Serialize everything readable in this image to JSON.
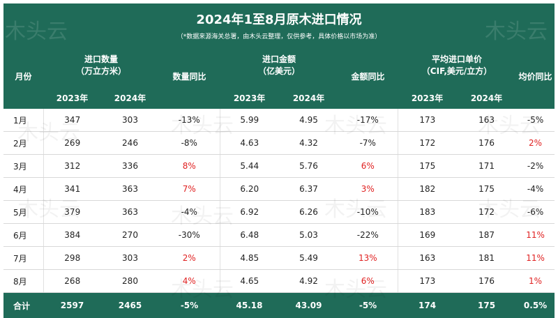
{
  "title": "2024年1至8月原木进口情况",
  "subtitle": "（*数据来源海关总署，由木头云整理，仅供参考，具体价格以市场为准）",
  "watermark": "木头云",
  "positive_color": "#e02020",
  "header": {
    "month": "月份",
    "quantity": [
      "进口数量",
      "（万立方米）"
    ],
    "quantity_yoy": "数量同比",
    "amount": [
      "进口金额",
      "（亿美元）"
    ],
    "amount_yoy": "金额同比",
    "price": [
      "平均进口单价",
      "（CIF,美元/立方）"
    ],
    "price_yoy": "均价同比",
    "years": [
      "2023年",
      "2024年"
    ]
  },
  "table": {
    "rows": [
      [
        "1月",
        "347",
        "303",
        "-13%",
        "5.99",
        "4.95",
        "-17%",
        "173",
        "163",
        "-5%"
      ],
      [
        "2月",
        "269",
        "246",
        "-8%",
        "4.63",
        "4.32",
        "-7%",
        "172",
        "176",
        "2%"
      ],
      [
        "3月",
        "312",
        "336",
        "8%",
        "5.44",
        "5.76",
        "6%",
        "175",
        "171",
        "-2%"
      ],
      [
        "4月",
        "341",
        "363",
        "7%",
        "6.20",
        "6.37",
        "3%",
        "182",
        "175",
        "-4%"
      ],
      [
        "5月",
        "379",
        "363",
        "-4%",
        "6.92",
        "6.26",
        "-10%",
        "183",
        "172",
        "-6%"
      ],
      [
        "6月",
        "384",
        "270",
        "-30%",
        "6.48",
        "5.03",
        "-22%",
        "169",
        "187",
        "11%"
      ],
      [
        "7月",
        "298",
        "303",
        "2%",
        "4.85",
        "5.49",
        "13%",
        "163",
        "181",
        "11%"
      ],
      [
        "8月",
        "268",
        "280",
        "4%",
        "4.65",
        "4.92",
        "6%",
        "173",
        "176",
        "1%"
      ]
    ],
    "total": [
      "合计",
      "2597",
      "2465",
      "-5%",
      "45.18",
      "43.09",
      "-5%",
      "174",
      "175",
      "0.5%"
    ]
  }
}
